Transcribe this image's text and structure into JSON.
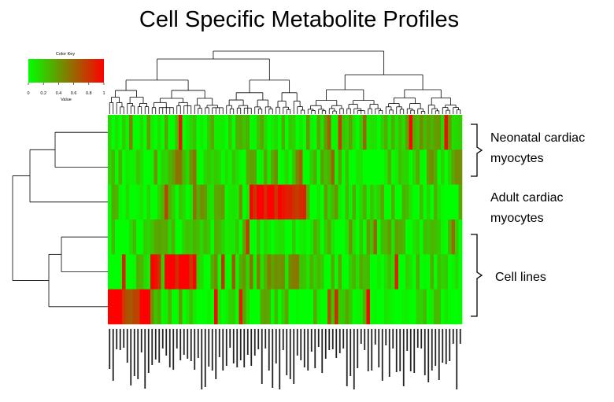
{
  "title": "Cell Specific Metabolite Profiles",
  "colors": {
    "low": "#00ff00",
    "mid": "#808000",
    "high": "#ff0000",
    "ink": "#000000"
  },
  "color_key": {
    "title": "Color Key",
    "axis_label": "Value",
    "ticks": [
      "0",
      "0.2",
      "0.4",
      "0.6",
      "0.8",
      "1"
    ]
  },
  "annotations": [
    {
      "lines": [
        "Neonatal cardiac",
        "myocytes"
      ],
      "bracket": true
    },
    {
      "lines": [
        "Adult cardiac",
        "myocytes"
      ],
      "bracket": false
    },
    {
      "lines": [
        "Cell lines"
      ],
      "bracket": true
    }
  ],
  "chart_data": {
    "type": "heatmap",
    "title": "Cell Specific Metabolite Profiles",
    "rows": 6,
    "columns": 100,
    "value_range": [
      0,
      1
    ],
    "row_groups": [
      "Neonatal cardiac myocytes",
      "Adult cardiac myocytes",
      "Cell lines"
    ],
    "row_dendrogram": true,
    "column_dendrogram": true,
    "legend": "top-left",
    "col_group_levels": [
      [
        0.15,
        0.1,
        0.1,
        0.1,
        0.25,
        0.1,
        0.3
      ],
      [
        0.1,
        0.3,
        0.1,
        0.15,
        0.1,
        0.1,
        0.2
      ],
      [
        0.1,
        0.1,
        0.2,
        0.95,
        0.2,
        0.1,
        0.1
      ],
      [
        0.05,
        0.1,
        0.1,
        0.1,
        0.1,
        0.15,
        0.05
      ],
      [
        0.1,
        0.95,
        0.15,
        0.3,
        0.1,
        0.1,
        0.1
      ],
      [
        0.95,
        0.2,
        0.1,
        0.1,
        0.1,
        0.1,
        0.1
      ]
    ]
  }
}
